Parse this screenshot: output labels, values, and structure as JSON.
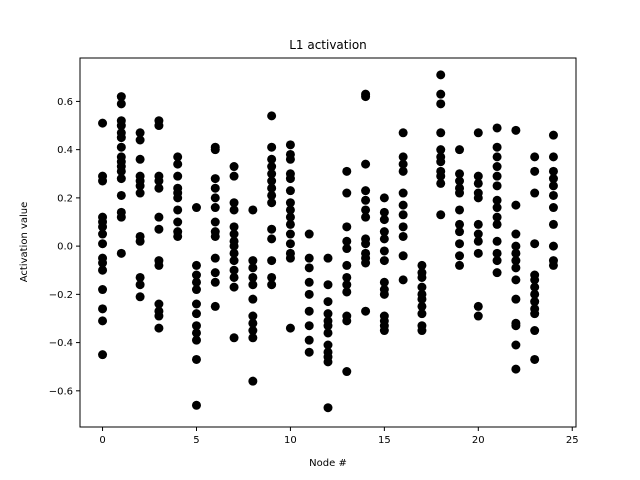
{
  "chart_data": {
    "type": "scatter",
    "title": "L1 activation",
    "xlabel": "Node #",
    "ylabel": "Activation value",
    "xlim": [
      -1.2,
      25.2
    ],
    "ylim": [
      -0.75,
      0.78
    ],
    "xticks": [
      0,
      5,
      10,
      15,
      20,
      25
    ],
    "yticks": [
      -0.6,
      -0.4,
      -0.2,
      0.0,
      0.2,
      0.4,
      0.6
    ],
    "xtick_labels": [
      "0",
      "5",
      "10",
      "15",
      "20",
      "25"
    ],
    "ytick_labels": [
      "−0.6",
      "−0.4",
      "−0.2",
      "0.0",
      "0.2",
      "0.4",
      "0.6"
    ],
    "grid": false,
    "marker_color": "#000000",
    "series": [
      {
        "points": [
          [
            0,
            0.51
          ],
          [
            0,
            0.29
          ],
          [
            0,
            0.27
          ],
          [
            0,
            0.12
          ],
          [
            0,
            0.1
          ],
          [
            0,
            0.08
          ],
          [
            0,
            0.05
          ],
          [
            0,
            0.01
          ],
          [
            0,
            -0.05
          ],
          [
            0,
            -0.07
          ],
          [
            0,
            -0.1
          ],
          [
            0,
            -0.18
          ],
          [
            0,
            -0.26
          ],
          [
            0,
            -0.31
          ],
          [
            0,
            -0.45
          ],
          [
            1,
            0.62
          ],
          [
            1,
            0.59
          ],
          [
            1,
            0.52
          ],
          [
            1,
            0.5
          ],
          [
            1,
            0.47
          ],
          [
            1,
            0.45
          ],
          [
            1,
            0.41
          ],
          [
            1,
            0.37
          ],
          [
            1,
            0.35
          ],
          [
            1,
            0.33
          ],
          [
            1,
            0.31
          ],
          [
            1,
            0.28
          ],
          [
            1,
            0.21
          ],
          [
            1,
            0.14
          ],
          [
            1,
            0.12
          ],
          [
            1,
            -0.03
          ],
          [
            2,
            0.47
          ],
          [
            2,
            0.44
          ],
          [
            2,
            0.36
          ],
          [
            2,
            0.29
          ],
          [
            2,
            0.27
          ],
          [
            2,
            0.25
          ],
          [
            2,
            0.22
          ],
          [
            2,
            0.04
          ],
          [
            2,
            0.02
          ],
          [
            2,
            -0.13
          ],
          [
            2,
            -0.16
          ],
          [
            2,
            -0.21
          ],
          [
            3,
            0.52
          ],
          [
            3,
            0.5
          ],
          [
            3,
            0.29
          ],
          [
            3,
            0.27
          ],
          [
            3,
            0.24
          ],
          [
            3,
            0.12
          ],
          [
            3,
            0.07
          ],
          [
            3,
            -0.06
          ],
          [
            3,
            -0.08
          ],
          [
            3,
            -0.24
          ],
          [
            3,
            -0.27
          ],
          [
            3,
            -0.29
          ],
          [
            3,
            -0.34
          ],
          [
            4,
            0.37
          ],
          [
            4,
            0.34
          ],
          [
            4,
            0.29
          ],
          [
            4,
            0.24
          ],
          [
            4,
            0.22
          ],
          [
            4,
            0.2
          ],
          [
            4,
            0.15
          ],
          [
            4,
            0.1
          ],
          [
            4,
            0.06
          ],
          [
            4,
            0.04
          ],
          [
            5,
            0.16
          ],
          [
            5,
            -0.08
          ],
          [
            5,
            -0.12
          ],
          [
            5,
            -0.15
          ],
          [
            5,
            -0.18
          ],
          [
            5,
            -0.24
          ],
          [
            5,
            -0.28
          ],
          [
            5,
            -0.33
          ],
          [
            5,
            -0.36
          ],
          [
            5,
            -0.39
          ],
          [
            5,
            -0.47
          ],
          [
            5,
            -0.66
          ],
          [
            6,
            0.41
          ],
          [
            6,
            0.4
          ],
          [
            6,
            0.28
          ],
          [
            6,
            0.24
          ],
          [
            6,
            0.2
          ],
          [
            6,
            0.16
          ],
          [
            6,
            0.1
          ],
          [
            6,
            0.06
          ],
          [
            6,
            0.04
          ],
          [
            6,
            -0.05
          ],
          [
            6,
            -0.11
          ],
          [
            6,
            -0.15
          ],
          [
            6,
            -0.25
          ],
          [
            7,
            0.33
          ],
          [
            7,
            0.29
          ],
          [
            7,
            0.18
          ],
          [
            7,
            0.15
          ],
          [
            7,
            0.08
          ],
          [
            7,
            0.05
          ],
          [
            7,
            0.02
          ],
          [
            7,
            0.0
          ],
          [
            7,
            -0.03
          ],
          [
            7,
            -0.06
          ],
          [
            7,
            -0.1
          ],
          [
            7,
            -0.13
          ],
          [
            7,
            -0.17
          ],
          [
            7,
            -0.38
          ],
          [
            8,
            0.15
          ],
          [
            8,
            -0.06
          ],
          [
            8,
            -0.09
          ],
          [
            8,
            -0.13
          ],
          [
            8,
            -0.16
          ],
          [
            8,
            -0.22
          ],
          [
            8,
            -0.29
          ],
          [
            8,
            -0.32
          ],
          [
            8,
            -0.35
          ],
          [
            8,
            -0.38
          ],
          [
            8,
            -0.56
          ],
          [
            9,
            0.54
          ],
          [
            9,
            0.41
          ],
          [
            9,
            0.36
          ],
          [
            9,
            0.33
          ],
          [
            9,
            0.3
          ],
          [
            9,
            0.27
          ],
          [
            9,
            0.24
          ],
          [
            9,
            0.21
          ],
          [
            9,
            0.18
          ],
          [
            9,
            0.07
          ],
          [
            9,
            0.03
          ],
          [
            9,
            -0.06
          ],
          [
            9,
            -0.13
          ],
          [
            9,
            -0.16
          ],
          [
            10,
            0.42
          ],
          [
            10,
            0.38
          ],
          [
            10,
            0.36
          ],
          [
            10,
            0.3
          ],
          [
            10,
            0.28
          ],
          [
            10,
            0.23
          ],
          [
            10,
            0.18
          ],
          [
            10,
            0.15
          ],
          [
            10,
            0.12
          ],
          [
            10,
            0.09
          ],
          [
            10,
            0.05
          ],
          [
            10,
            0.01
          ],
          [
            10,
            -0.03
          ],
          [
            10,
            -0.05
          ],
          [
            10,
            -0.34
          ],
          [
            11,
            0.05
          ],
          [
            11,
            -0.05
          ],
          [
            11,
            -0.09
          ],
          [
            11,
            -0.15
          ],
          [
            11,
            -0.2
          ],
          [
            11,
            -0.27
          ],
          [
            11,
            -0.33
          ],
          [
            11,
            -0.39
          ],
          [
            11,
            -0.44
          ],
          [
            12,
            -0.05
          ],
          [
            12,
            -0.16
          ],
          [
            12,
            -0.23
          ],
          [
            12,
            -0.28
          ],
          [
            12,
            -0.31
          ],
          [
            12,
            -0.33
          ],
          [
            12,
            -0.36
          ],
          [
            12,
            -0.41
          ],
          [
            12,
            -0.44
          ],
          [
            12,
            -0.46
          ],
          [
            12,
            -0.48
          ],
          [
            12,
            -0.67
          ],
          [
            13,
            0.31
          ],
          [
            13,
            0.22
          ],
          [
            13,
            0.08
          ],
          [
            13,
            0.02
          ],
          [
            13,
            -0.01
          ],
          [
            13,
            -0.08
          ],
          [
            13,
            -0.13
          ],
          [
            13,
            -0.16
          ],
          [
            13,
            -0.19
          ],
          [
            13,
            -0.29
          ],
          [
            13,
            -0.31
          ],
          [
            13,
            -0.52
          ],
          [
            14,
            0.63
          ],
          [
            14,
            0.62
          ],
          [
            14,
            0.34
          ],
          [
            14,
            0.23
          ],
          [
            14,
            0.19
          ],
          [
            14,
            0.15
          ],
          [
            14,
            0.12
          ],
          [
            14,
            0.03
          ],
          [
            14,
            0.01
          ],
          [
            14,
            -0.03
          ],
          [
            14,
            -0.05
          ],
          [
            14,
            -0.07
          ],
          [
            14,
            -0.27
          ],
          [
            15,
            0.2
          ],
          [
            15,
            0.14
          ],
          [
            15,
            0.11
          ],
          [
            15,
            0.06
          ],
          [
            15,
            0.03
          ],
          [
            15,
            -0.02
          ],
          [
            15,
            -0.06
          ],
          [
            15,
            -0.15
          ],
          [
            15,
            -0.18
          ],
          [
            15,
            -0.2
          ],
          [
            15,
            -0.29
          ],
          [
            15,
            -0.31
          ],
          [
            15,
            -0.33
          ],
          [
            15,
            -0.35
          ],
          [
            16,
            0.47
          ],
          [
            16,
            0.37
          ],
          [
            16,
            0.34
          ],
          [
            16,
            0.31
          ],
          [
            16,
            0.22
          ],
          [
            16,
            0.17
          ],
          [
            16,
            0.13
          ],
          [
            16,
            0.08
          ],
          [
            16,
            0.04
          ],
          [
            16,
            -0.04
          ],
          [
            16,
            -0.14
          ],
          [
            17,
            -0.08
          ],
          [
            17,
            -0.11
          ],
          [
            17,
            -0.13
          ],
          [
            17,
            -0.17
          ],
          [
            17,
            -0.2
          ],
          [
            17,
            -0.22
          ],
          [
            17,
            -0.25
          ],
          [
            17,
            -0.28
          ],
          [
            17,
            -0.33
          ],
          [
            17,
            -0.35
          ],
          [
            18,
            0.71
          ],
          [
            18,
            0.63
          ],
          [
            18,
            0.59
          ],
          [
            18,
            0.47
          ],
          [
            18,
            0.4
          ],
          [
            18,
            0.37
          ],
          [
            18,
            0.35
          ],
          [
            18,
            0.31
          ],
          [
            18,
            0.29
          ],
          [
            18,
            0.26
          ],
          [
            18,
            0.13
          ],
          [
            19,
            0.4
          ],
          [
            19,
            0.3
          ],
          [
            19,
            0.27
          ],
          [
            19,
            0.24
          ],
          [
            19,
            0.22
          ],
          [
            19,
            0.15
          ],
          [
            19,
            0.09
          ],
          [
            19,
            0.06
          ],
          [
            19,
            0.01
          ],
          [
            19,
            -0.04
          ],
          [
            19,
            -0.08
          ],
          [
            20,
            0.47
          ],
          [
            20,
            0.29
          ],
          [
            20,
            0.26
          ],
          [
            20,
            0.22
          ],
          [
            20,
            0.2
          ],
          [
            20,
            0.09
          ],
          [
            20,
            0.05
          ],
          [
            20,
            0.02
          ],
          [
            20,
            -0.03
          ],
          [
            20,
            -0.25
          ],
          [
            20,
            -0.29
          ],
          [
            21,
            0.49
          ],
          [
            21,
            0.41
          ],
          [
            21,
            0.37
          ],
          [
            21,
            0.33
          ],
          [
            21,
            0.29
          ],
          [
            21,
            0.25
          ],
          [
            21,
            0.19
          ],
          [
            21,
            0.16
          ],
          [
            21,
            0.12
          ],
          [
            21,
            0.09
          ],
          [
            21,
            0.02
          ],
          [
            21,
            -0.03
          ],
          [
            21,
            -0.06
          ],
          [
            21,
            -0.11
          ],
          [
            22,
            0.48
          ],
          [
            22,
            0.17
          ],
          [
            22,
            0.05
          ],
          [
            22,
            0.0
          ],
          [
            22,
            -0.03
          ],
          [
            22,
            -0.06
          ],
          [
            22,
            -0.09
          ],
          [
            22,
            -0.14
          ],
          [
            22,
            -0.22
          ],
          [
            22,
            -0.32
          ],
          [
            22,
            -0.33
          ],
          [
            22,
            -0.41
          ],
          [
            22,
            -0.51
          ],
          [
            23,
            0.37
          ],
          [
            23,
            0.31
          ],
          [
            23,
            0.22
          ],
          [
            23,
            0.01
          ],
          [
            23,
            -0.12
          ],
          [
            23,
            -0.14
          ],
          [
            23,
            -0.17
          ],
          [
            23,
            -0.2
          ],
          [
            23,
            -0.23
          ],
          [
            23,
            -0.26
          ],
          [
            23,
            -0.28
          ],
          [
            23,
            -0.35
          ],
          [
            23,
            -0.47
          ],
          [
            24,
            0.46
          ],
          [
            24,
            0.37
          ],
          [
            24,
            0.31
          ],
          [
            24,
            0.28
          ],
          [
            24,
            0.25
          ],
          [
            24,
            0.21
          ],
          [
            24,
            0.16
          ],
          [
            24,
            0.09
          ],
          [
            24,
            0.0
          ],
          [
            24,
            -0.06
          ],
          [
            24,
            -0.08
          ]
        ]
      }
    ]
  }
}
